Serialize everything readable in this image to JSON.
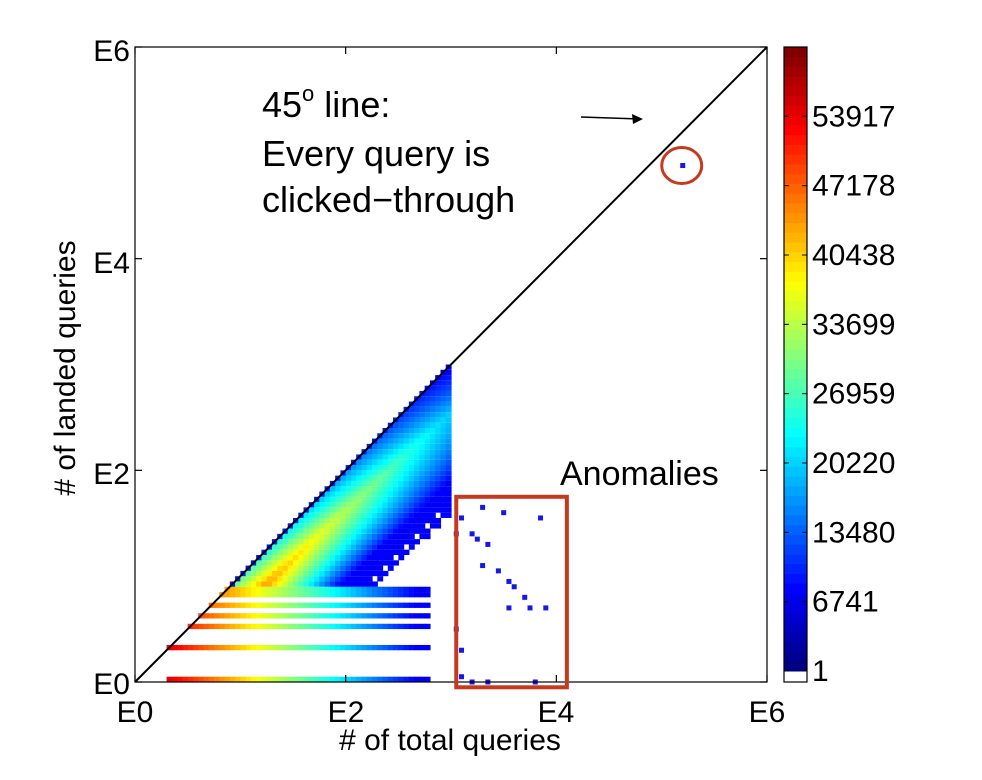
{
  "chart_data": {
    "type": "heatmap",
    "title": "",
    "xlabel": "# of total queries",
    "ylabel": "# of landed queries",
    "x_scale": "log10",
    "y_scale": "log10",
    "xlim": [
      0,
      6
    ],
    "ylim": [
      0,
      6
    ],
    "x_ticks": [
      "E0",
      "E2",
      "E4",
      "E6"
    ],
    "y_ticks": [
      "E0",
      "E2",
      "E4",
      "E6"
    ],
    "reference_line": {
      "label": "45° line",
      "slope": 1,
      "intercept": 0
    },
    "annotations": {
      "line_title_main": "45",
      "line_title_sup": "o",
      "line_title_rest": " line:",
      "line_text_2": "Every query is",
      "line_text_3": "clicked−through",
      "anomalies_label": "Anomalies"
    },
    "anomaly_box": {
      "x_range": [
        3.05,
        4.1
      ],
      "y_range": [
        -0.05,
        1.75
      ]
    },
    "circled_point": {
      "x": 5.2,
      "y": 4.88
    },
    "colorbar": {
      "max": 60657,
      "tick_labels": [
        "53917",
        "47178",
        "40438",
        "33699",
        "26959",
        "20220",
        "13480",
        "6741",
        "1"
      ],
      "tick_values": [
        53917,
        47178,
        40438,
        33699,
        26959,
        20220,
        13480,
        6741,
        1
      ],
      "colormap": "jet",
      "colors": [
        "#00008f",
        "#0000ff",
        "#0080ff",
        "#00ffff",
        "#80ff80",
        "#ffff00",
        "#ff8000",
        "#ff0000",
        "#800000"
      ]
    },
    "outliers": [
      [
        3.1,
        1.55
      ],
      [
        3.3,
        1.65
      ],
      [
        3.5,
        1.6
      ],
      [
        3.85,
        1.55
      ],
      [
        3.05,
        1.4
      ],
      [
        3.2,
        1.4
      ],
      [
        3.25,
        1.35
      ],
      [
        3.35,
        1.3
      ],
      [
        3.3,
        1.1
      ],
      [
        3.45,
        1.05
      ],
      [
        3.55,
        0.95
      ],
      [
        3.6,
        0.9
      ],
      [
        3.7,
        0.8
      ],
      [
        3.55,
        0.7
      ],
      [
        3.75,
        0.7
      ],
      [
        3.9,
        0.7
      ],
      [
        3.05,
        0.5
      ],
      [
        3.1,
        0.3
      ],
      [
        3.1,
        0.05
      ],
      [
        3.2,
        0.0
      ],
      [
        3.35,
        0.0
      ],
      [
        3.8,
        0.0
      ],
      [
        5.2,
        4.88
      ]
    ]
  }
}
